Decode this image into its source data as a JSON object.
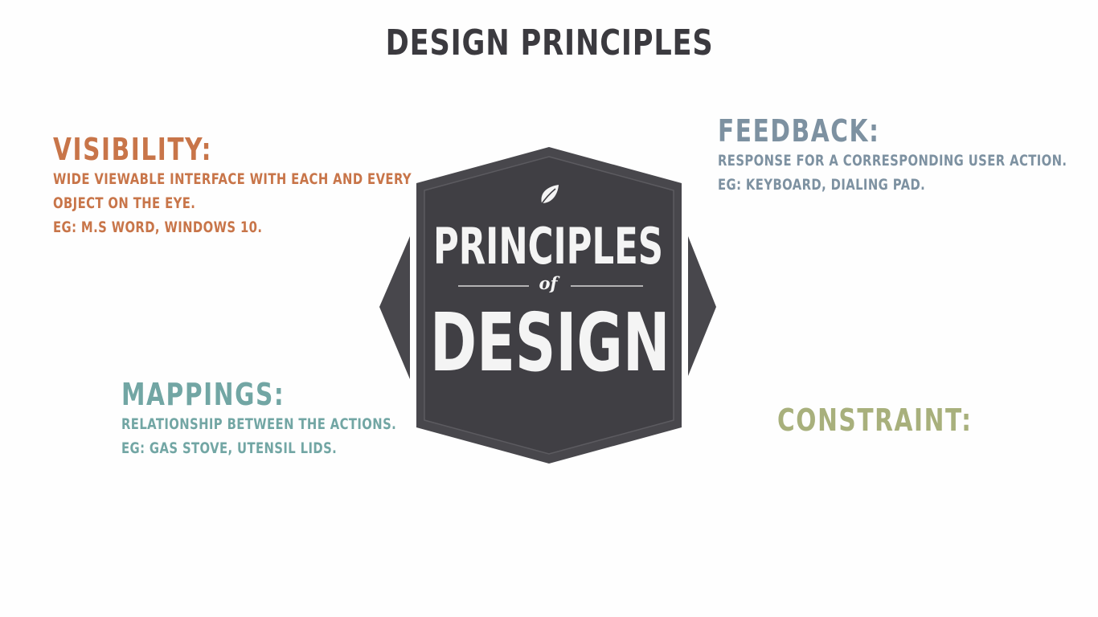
{
  "title": "DESIGN PRINCIPLES",
  "badge": {
    "line1": "PRINCIPLES",
    "line2": "of",
    "line3": "DESIGN",
    "icon": "leaf-icon"
  },
  "sections": {
    "visibility": {
      "heading": "VISIBILITY:",
      "lines": [
        "WIDE VIEWABLE INTERFACE WITH EACH AND EVERY",
        "OBJECT ON THE EYE.",
        "EG: M.S WORD, WINDOWS 10."
      ]
    },
    "feedback": {
      "heading": "FEEDBACK:",
      "lines": [
        "RESPONSE FOR A CORRESPONDING USER ACTION.",
        "EG: KEYBOARD, DIALING PAD."
      ]
    },
    "mappings": {
      "heading": "MAPPINGS:",
      "lines": [
        "RELATIONSHIP BETWEEN THE ACTIONS.",
        "EG: GAS STOVE, UTENSIL LIDS."
      ]
    },
    "constraint": {
      "heading": "CONSTRAINT:"
    }
  },
  "colors": {
    "visibility": "#c87549",
    "feedback": "#7d91a1",
    "mappings": "#72a6a4",
    "constraint": "#a8b07c",
    "badge": "#48474c",
    "title": "#3b3a3f"
  }
}
